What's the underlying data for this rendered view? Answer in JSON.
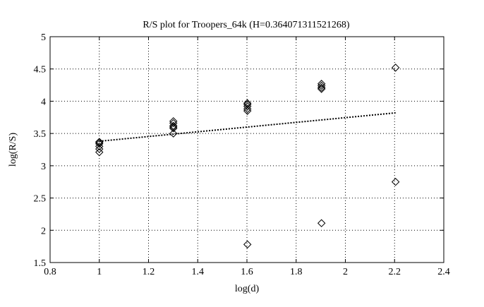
{
  "chart_data": {
    "type": "scatter",
    "title": "R/S plot for Troopers_64k (H=0.364071311521268)",
    "xlabel": "log(d)",
    "ylabel": "log(R/S)",
    "xlim": [
      0.8,
      2.4
    ],
    "ylim": [
      1.5,
      5
    ],
    "xticks": [
      0.8,
      1,
      1.2,
      1.4,
      1.6,
      1.8,
      2,
      2.2,
      2.4
    ],
    "xtick_labels": [
      "0.8",
      "1",
      "1.2",
      "1.4",
      "1.6",
      "1.8",
      "2",
      "2.2",
      "2.4"
    ],
    "yticks": [
      1.5,
      2,
      2.5,
      3,
      3.5,
      4,
      4.5,
      5
    ],
    "ytick_labels": [
      "1.5",
      "2",
      "2.5",
      "3",
      "3.5",
      "4",
      "4.5",
      "5"
    ],
    "grid": true,
    "marker": "diamond",
    "colors": {
      "marker": "#000000",
      "fit": "#000000",
      "grid": "#000000"
    },
    "series": [
      {
        "style": "markers",
        "points": [
          [
            1.0,
            3.21
          ],
          [
            1.0,
            3.26
          ],
          [
            1.0,
            3.3
          ],
          [
            1.0,
            3.34
          ],
          [
            1.0,
            3.36
          ],
          [
            1.0,
            3.37
          ],
          [
            1.301,
            3.5
          ],
          [
            1.301,
            3.58
          ],
          [
            1.301,
            3.6
          ],
          [
            1.301,
            3.62
          ],
          [
            1.301,
            3.66
          ],
          [
            1.301,
            3.69
          ],
          [
            1.602,
            1.78
          ],
          [
            1.602,
            3.85
          ],
          [
            1.602,
            3.88
          ],
          [
            1.602,
            3.92
          ],
          [
            1.602,
            3.95
          ],
          [
            1.602,
            3.97
          ],
          [
            1.903,
            2.11
          ],
          [
            1.903,
            4.19
          ],
          [
            1.903,
            4.21
          ],
          [
            1.903,
            4.24
          ],
          [
            1.903,
            4.27
          ],
          [
            2.204,
            2.75
          ],
          [
            2.204,
            4.52
          ]
        ]
      },
      {
        "style": "dotted-line",
        "points": [
          [
            1.0,
            3.38
          ],
          [
            2.204,
            3.82
          ]
        ]
      }
    ]
  }
}
